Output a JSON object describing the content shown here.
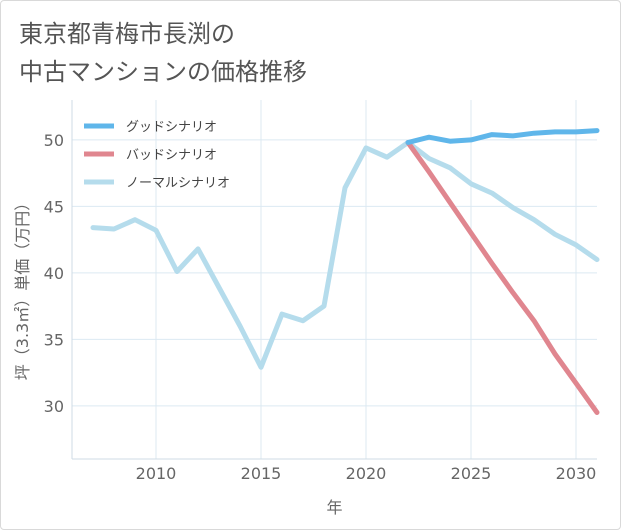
{
  "title_line1": "東京都青梅市長渕の",
  "title_line2": "中古マンションの価格推移",
  "chart_data": {
    "type": "line",
    "xlabel": "年",
    "ylabel": "坪（3.3㎡）単価（万円）",
    "xlim": [
      2006,
      2031
    ],
    "ylim": [
      26,
      53
    ],
    "x_ticks": [
      2010,
      2015,
      2020,
      2025,
      2030
    ],
    "y_ticks": [
      30,
      35,
      40,
      45,
      50
    ],
    "grid": true,
    "legend_position": "top-left",
    "series": [
      {
        "name": "グッドシナリオ",
        "color": "#5fb6ea",
        "x": [
          2022,
          2023,
          2024,
          2025,
          2026,
          2027,
          2028,
          2029,
          2030,
          2031
        ],
        "y": [
          49.8,
          50.2,
          49.9,
          50.0,
          50.4,
          50.3,
          50.5,
          50.6,
          50.6,
          50.7
        ]
      },
      {
        "name": "バッドシナリオ",
        "color": "#e0868f",
        "x": [
          2022,
          2023,
          2024,
          2025,
          2026,
          2027,
          2028,
          2029,
          2030,
          2031
        ],
        "y": [
          49.8,
          47.6,
          45.3,
          43.0,
          40.7,
          38.5,
          36.4,
          33.9,
          31.7,
          29.5
        ]
      },
      {
        "name": "ノーマルシナリオ",
        "color": "#b5dcec",
        "x": [
          2007,
          2008,
          2009,
          2010,
          2011,
          2012,
          2013,
          2014,
          2015,
          2016,
          2017,
          2018,
          2019,
          2020,
          2021,
          2022,
          2023,
          2024,
          2025,
          2026,
          2027,
          2028,
          2029,
          2030,
          2031
        ],
        "y": [
          43.4,
          43.3,
          44.0,
          43.2,
          40.1,
          41.8,
          38.9,
          36.0,
          32.9,
          36.9,
          36.4,
          37.5,
          46.4,
          49.4,
          48.7,
          49.8,
          48.6,
          47.9,
          46.7,
          46.0,
          44.9,
          44.0,
          42.9,
          42.1,
          41.0
        ]
      }
    ]
  }
}
